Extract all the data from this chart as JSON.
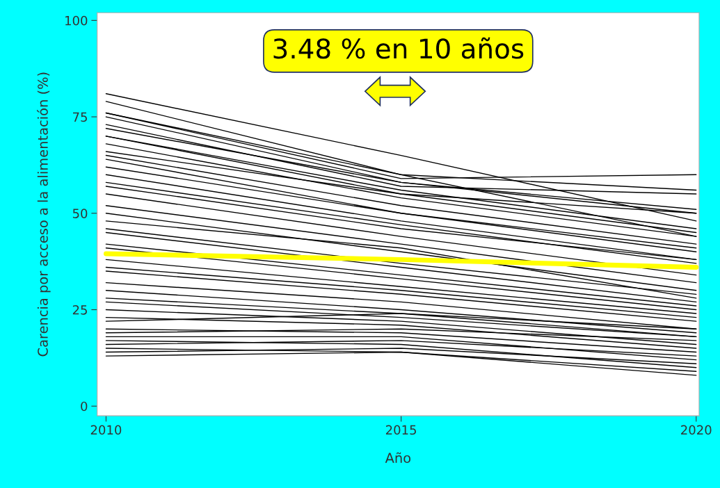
{
  "chart_data": {
    "type": "line",
    "xlabel": "Año",
    "ylabel": "Carencia por acceso a la alimentación (%)",
    "x": [
      2010,
      2015,
      2020
    ],
    "xlim": [
      2009.85,
      2020.05
    ],
    "xticks": [
      2010,
      2015,
      2020
    ],
    "ylim": [
      -2.5,
      102
    ],
    "yticks": [
      0,
      25,
      50,
      75,
      100
    ],
    "grid": false,
    "legend": false,
    "marker": "none",
    "line_style": "solid",
    "annotations": [
      "3.48 % en 10 años"
    ],
    "series": [
      {
        "color": "#000000",
        "values": [
          81,
          65,
          48
        ]
      },
      {
        "color": "#000000",
        "values": [
          79,
          60,
          44
        ]
      },
      {
        "color": "#000000",
        "values": [
          76,
          60,
          56
        ]
      },
      {
        "color": "#000000",
        "values": [
          76,
          59,
          60
        ]
      },
      {
        "color": "#000000",
        "values": [
          75,
          58,
          51
        ]
      },
      {
        "color": "#000000",
        "values": [
          73,
          57,
          55
        ]
      },
      {
        "color": "#000000",
        "values": [
          72,
          58,
          50
        ]
      },
      {
        "color": "#000000",
        "values": [
          70,
          56,
          46
        ]
      },
      {
        "color": "#000000",
        "values": [
          70,
          55,
          45
        ]
      },
      {
        "color": "#000000",
        "values": [
          68,
          54,
          44
        ]
      },
      {
        "color": "#000000",
        "values": [
          66,
          55,
          50
        ]
      },
      {
        "color": "#000000",
        "values": [
          65,
          52,
          42
        ]
      },
      {
        "color": "#000000",
        "values": [
          64,
          50,
          41
        ]
      },
      {
        "color": "#000000",
        "values": [
          62,
          50,
          40
        ]
      },
      {
        "color": "#000000",
        "values": [
          60,
          48,
          38
        ]
      },
      {
        "color": "#000000",
        "values": [
          58,
          47,
          37
        ]
      },
      {
        "color": "#000000",
        "values": [
          57,
          46,
          38
        ]
      },
      {
        "color": "#000000",
        "values": [
          55,
          44,
          34
        ]
      },
      {
        "color": "#000000",
        "values": [
          52,
          42,
          32
        ]
      },
      {
        "color": "#000000",
        "values": [
          50,
          40,
          30
        ]
      },
      {
        "color": "#000000",
        "values": [
          48,
          41,
          28
        ]
      },
      {
        "color": "#000000",
        "values": [
          46,
          37,
          29
        ]
      },
      {
        "color": "#000000",
        "values": [
          45,
          36,
          27
        ]
      },
      {
        "color": "#000000",
        "values": [
          42,
          34,
          26
        ]
      },
      {
        "color": "#000000",
        "values": [
          41,
          33,
          25
        ]
      },
      {
        "color": "#000000",
        "values": [
          38,
          31,
          24
        ]
      },
      {
        "color": "#000000",
        "values": [
          36,
          30,
          23
        ]
      },
      {
        "color": "#000000",
        "values": [
          35,
          29,
          22
        ]
      },
      {
        "color": "#000000",
        "values": [
          32,
          27,
          20
        ]
      },
      {
        "color": "#000000",
        "values": [
          30,
          25,
          19
        ]
      },
      {
        "color": "#000000",
        "values": [
          28,
          24,
          18
        ]
      },
      {
        "color": "#000000",
        "values": [
          27,
          23,
          18
        ]
      },
      {
        "color": "#000000",
        "values": [
          25,
          22,
          16
        ]
      },
      {
        "color": "#000000",
        "values": [
          23,
          21,
          15
        ]
      },
      {
        "color": "#000000",
        "values": [
          22,
          24,
          20
        ]
      },
      {
        "color": "#000000",
        "values": [
          20,
          19,
          14
        ]
      },
      {
        "color": "#000000",
        "values": [
          19,
          20,
          17
        ]
      },
      {
        "color": "#000000",
        "values": [
          18,
          18,
          12
        ]
      },
      {
        "color": "#000000",
        "values": [
          17,
          16,
          10
        ]
      },
      {
        "color": "#000000",
        "values": [
          16,
          17,
          13
        ]
      },
      {
        "color": "#000000",
        "values": [
          15,
          14,
          9
        ]
      },
      {
        "color": "#000000",
        "values": [
          14,
          15,
          11
        ]
      },
      {
        "color": "#000000",
        "values": [
          13,
          14,
          8
        ]
      },
      {
        "color": "#ffff00",
        "values": [
          39.5,
          38,
          36
        ]
      }
    ]
  }
}
